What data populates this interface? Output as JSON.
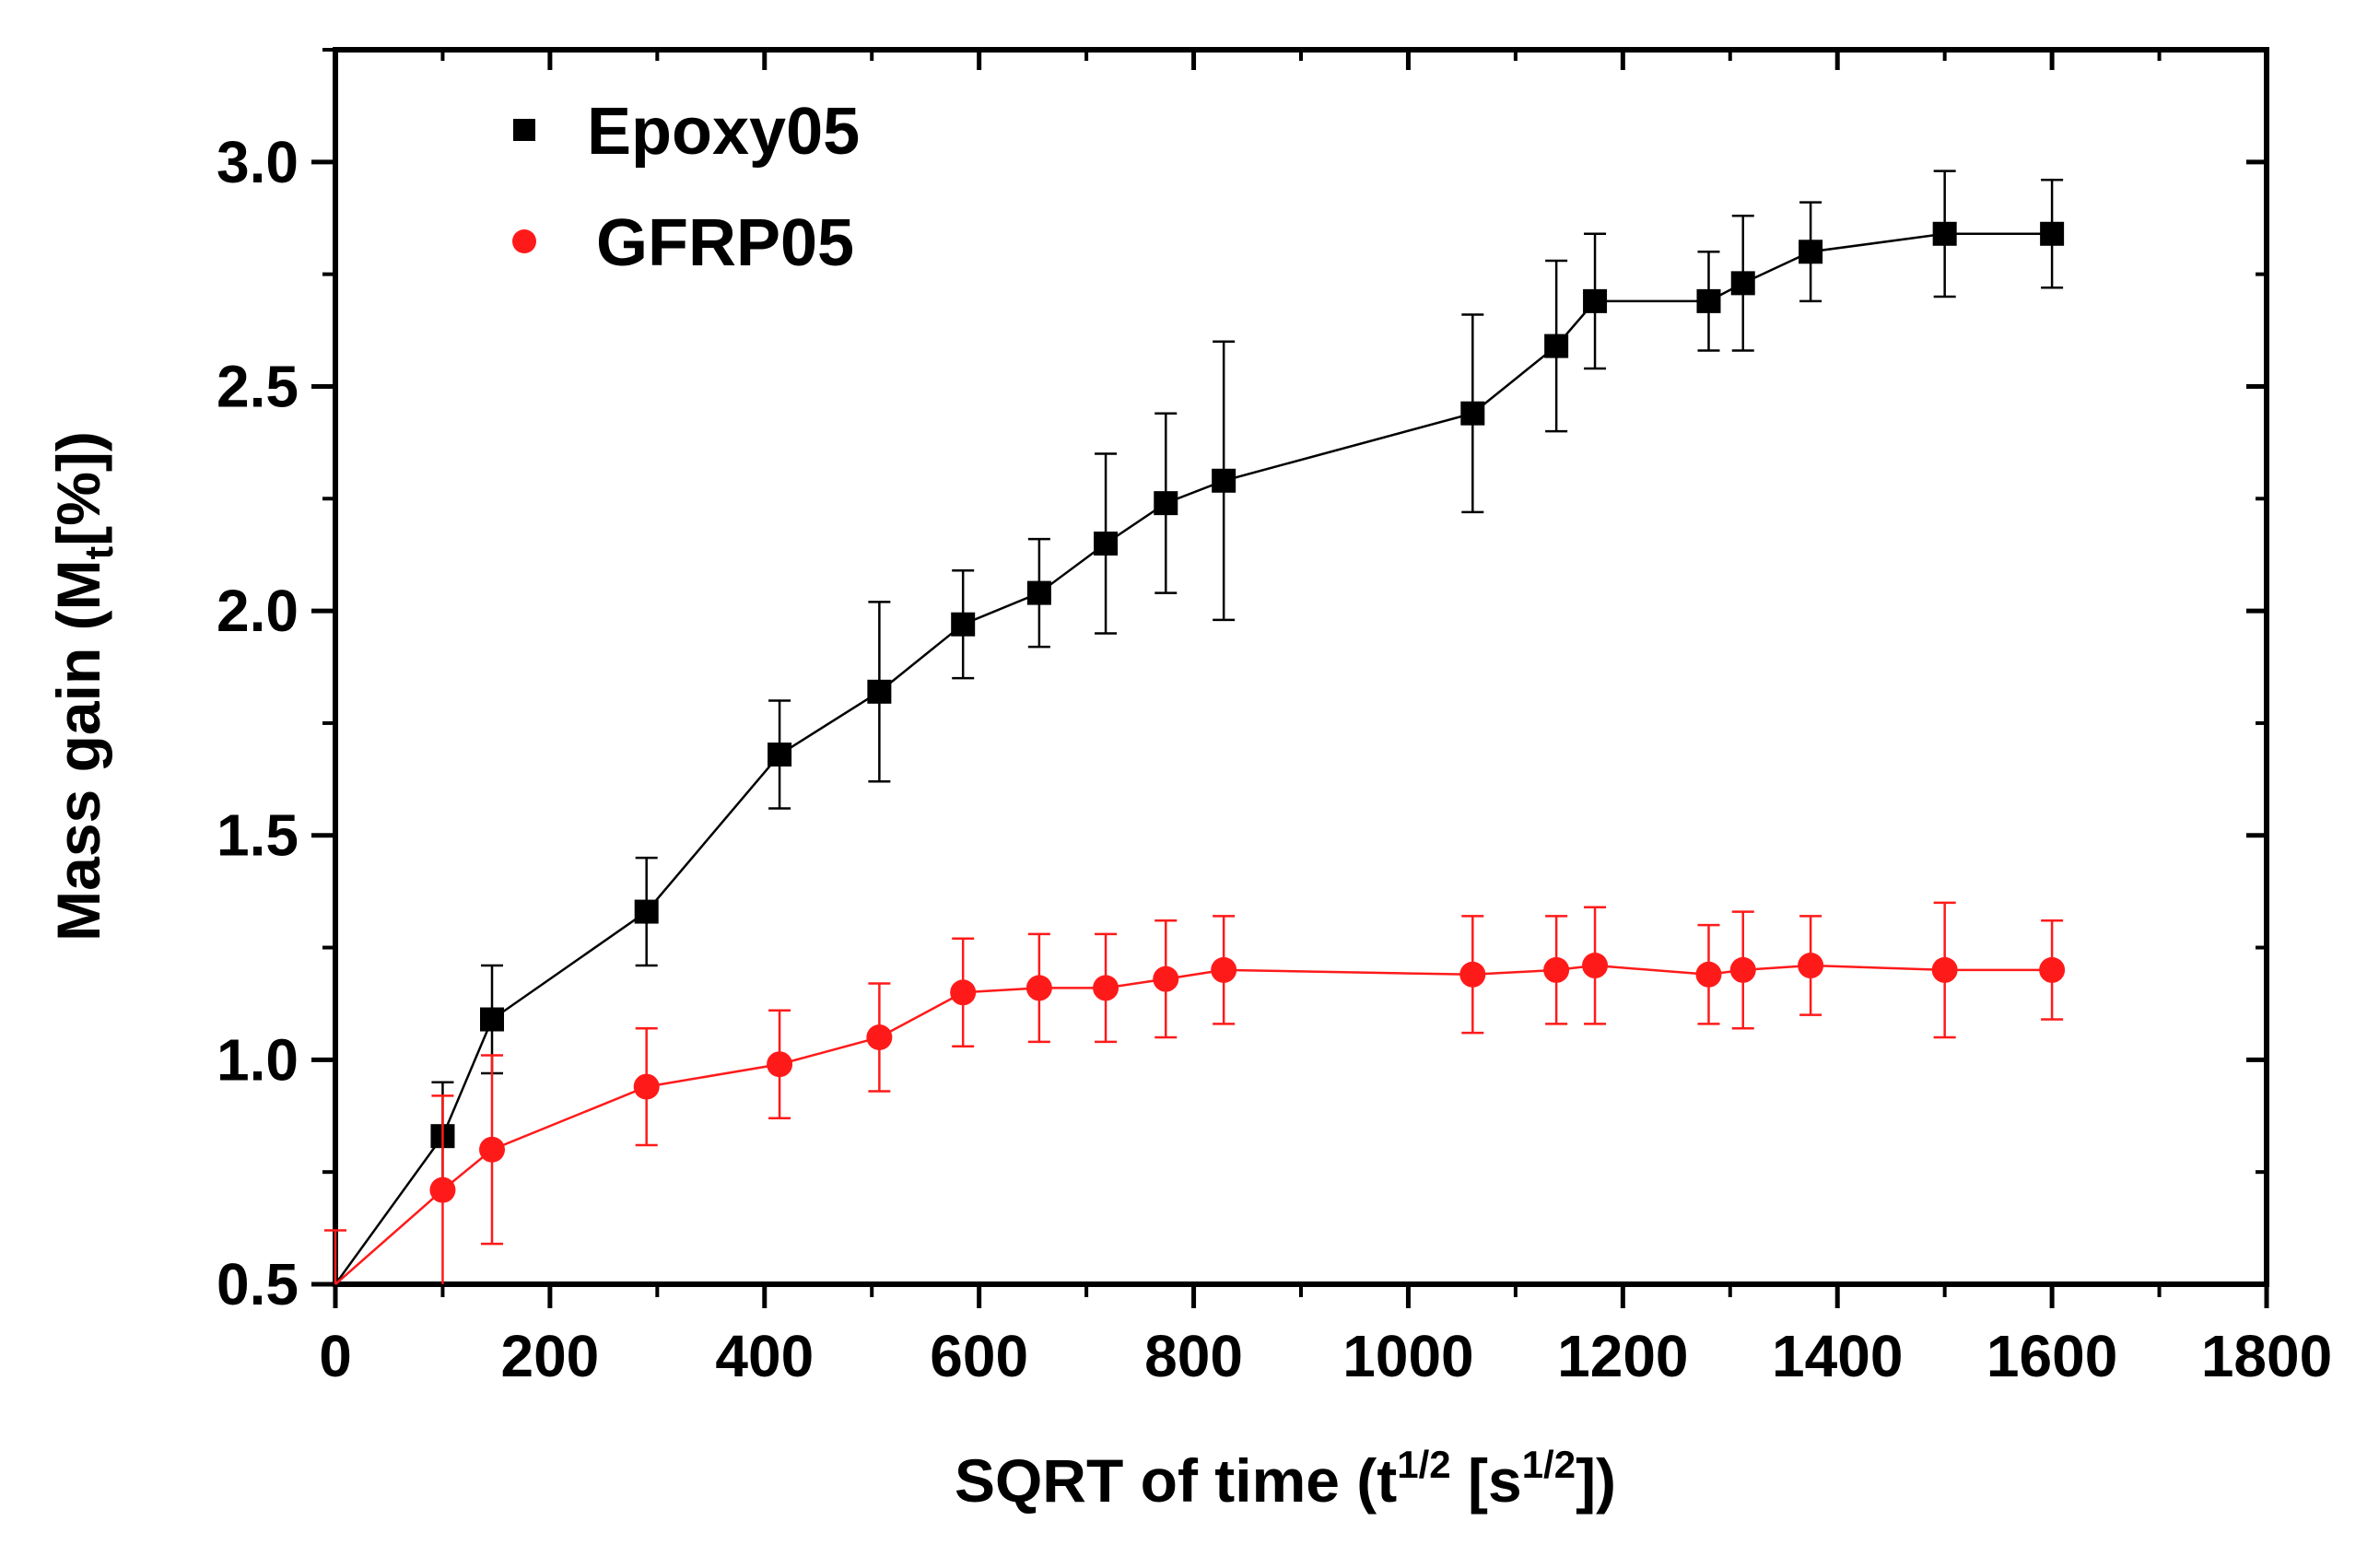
{
  "chart_data": {
    "type": "scatter",
    "title": "",
    "xlabel": "SQRT of time (t",
    "xlabel_sup1": "1/2",
    "xlabel_mid": " [s",
    "xlabel_sup2": "1/2",
    "xlabel_end": "])",
    "ylabel": "Mass gain (M",
    "ylabel_sub": "t",
    "ylabel_end": "[%])",
    "xlim": [
      0,
      1800
    ],
    "ylim": [
      0.5,
      3.25
    ],
    "xticks": [
      "0",
      "200",
      "400",
      "600",
      "800",
      "1000",
      "1200",
      "1400",
      "1600",
      "1800"
    ],
    "xtick_values": [
      0,
      200,
      400,
      600,
      800,
      1000,
      1200,
      1400,
      1600,
      1800
    ],
    "yticks": [
      "0.5",
      "1.0",
      "1.5",
      "2.0",
      "2.5",
      "3.0"
    ],
    "ytick_values": [
      0.5,
      1.0,
      1.5,
      2.0,
      2.5,
      3.0
    ],
    "legend_position": "top-left",
    "series": [
      {
        "name": "Epoxy05",
        "marker": "square",
        "color": "#000000",
        "x": [
          0,
          100,
          146,
          290,
          414,
          507,
          585,
          656,
          718,
          774,
          828,
          1060,
          1138,
          1174,
          1280,
          1312,
          1375,
          1500,
          1600
        ],
        "y": [
          0.5,
          0.83,
          1.09,
          1.33,
          1.68,
          1.82,
          1.97,
          2.04,
          2.15,
          2.24,
          2.29,
          2.44,
          2.59,
          2.69,
          2.69,
          2.73,
          2.8,
          2.84,
          2.84
        ],
        "err": [
          0.0,
          0.12,
          0.12,
          0.12,
          0.12,
          0.2,
          0.12,
          0.12,
          0.2,
          0.2,
          0.31,
          0.22,
          0.19,
          0.15,
          0.11,
          0.15,
          0.11,
          0.14,
          0.12
        ]
      },
      {
        "name": "GFRP05",
        "marker": "circle",
        "color": "#ff1a1a",
        "x": [
          0,
          100,
          146,
          290,
          414,
          507,
          585,
          656,
          718,
          774,
          828,
          1060,
          1138,
          1174,
          1280,
          1312,
          1375,
          1500,
          1600
        ],
        "y": [
          0.5,
          0.71,
          0.8,
          0.94,
          0.99,
          1.05,
          1.15,
          1.16,
          1.16,
          1.18,
          1.2,
          1.19,
          1.2,
          1.21,
          1.19,
          1.2,
          1.21,
          1.2,
          1.2
        ],
        "err": [
          0.12,
          0.21,
          0.21,
          0.13,
          0.12,
          0.12,
          0.12,
          0.12,
          0.12,
          0.13,
          0.12,
          0.13,
          0.12,
          0.13,
          0.11,
          0.13,
          0.11,
          0.15,
          0.11
        ]
      }
    ]
  }
}
